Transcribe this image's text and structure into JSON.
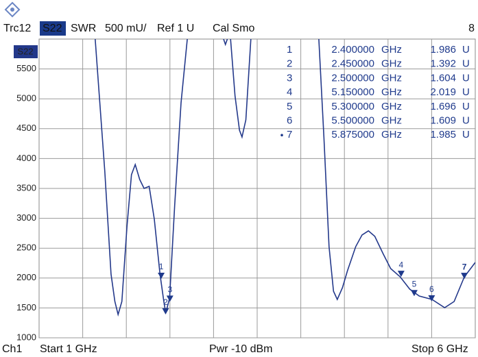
{
  "chart_data": {
    "type": "line",
    "header": [
      "Trc12",
      "S22",
      "SWR",
      "500 mU/",
      "Ref 1 U",
      "Cal Smo",
      "8"
    ],
    "footer": [
      "Ch1",
      "Start 1 GHz",
      "Pwr -10 dBm",
      "Stop 6 GHz"
    ],
    "xlim": [
      1,
      6
    ],
    "ylim": [
      1000,
      6000
    ],
    "yticks": [
      1000,
      1500,
      2000,
      2500,
      3000,
      3500,
      4000,
      4500,
      5000,
      5500
    ],
    "grid": true,
    "series": [
      {
        "name": "S22",
        "color": "#23388a",
        "x": [
          1.643,
          1.753,
          1.825,
          1.869,
          1.906,
          1.949,
          2.008,
          2.059,
          2.102,
          2.153,
          2.204,
          2.262,
          2.321,
          2.386,
          2.43,
          2.452,
          2.496,
          2.554,
          2.627,
          2.699,
          null,
          3.115,
          3.136,
          3.158,
          null,
          3.195,
          3.246,
          3.297,
          3.326,
          3.37,
          3.428,
          null,
          4.207,
          4.265,
          4.324,
          4.375,
          4.418,
          4.477,
          4.535,
          4.63,
          4.702,
          4.775,
          4.848,
          4.943,
          5.03,
          5.139,
          5.249,
          5.358,
          5.504,
          5.649,
          5.758,
          5.875,
          6.0
        ],
        "values": [
          6000,
          3787,
          2067,
          1608,
          1390,
          1608,
          2870,
          3730,
          3900,
          3650,
          3500,
          3535,
          2985,
          2067,
          1608,
          1413,
          1665,
          3214,
          4934,
          6000,
          null,
          6000,
          5909,
          6000,
          null,
          6000,
          5049,
          4475,
          4361,
          4648,
          6000,
          null,
          6000,
          4361,
          2526,
          1780,
          1642,
          1837,
          2124,
          2526,
          2721,
          2790,
          2698,
          2411,
          2159,
          2021,
          1814,
          1700,
          1642,
          1505,
          1608,
          2021,
          2262
        ]
      }
    ],
    "markers": {
      "color": "#1f3a8c",
      "names": [
        "1",
        "2",
        "3",
        "4",
        "5",
        "6",
        "7"
      ],
      "x": [
        2.4,
        2.45,
        2.5,
        5.15,
        5.3,
        5.5,
        5.875
      ],
      "x_labels": [
        "2.400000",
        "2.450000",
        "2.500000",
        "5.150000",
        "5.300000",
        "5.500000",
        "5.875000"
      ],
      "x_unit": "GHz",
      "values": [
        1986,
        1392,
        1604,
        2019,
        1696,
        1609,
        1985
      ],
      "value_labels": [
        "1.986",
        "1.392",
        "1.604",
        "2.019",
        "1.696",
        "1.609",
        "1.985"
      ],
      "value_unit": "U"
    }
  }
}
